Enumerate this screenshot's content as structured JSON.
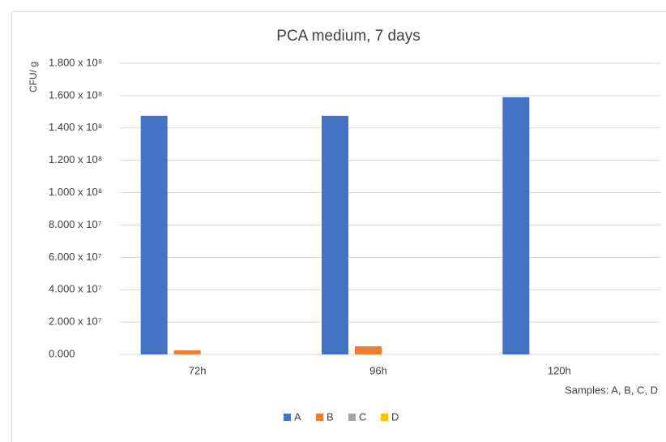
{
  "chart_data": {
    "type": "bar",
    "title": "PCA medium, 7 days",
    "y_label": "CFU/ g",
    "annotation": "Samples: A, B, C, D",
    "categories": [
      "72h",
      "96h",
      "120h"
    ],
    "series": [
      {
        "name": "A",
        "color": "#4472c4",
        "values": [
          147500000,
          147500000,
          159000000
        ]
      },
      {
        "name": "B",
        "color": "#ed7d31",
        "values": [
          2500000,
          5000000,
          0
        ]
      },
      {
        "name": "C",
        "color": "#a5a5a5",
        "values": [
          0,
          0,
          0
        ]
      },
      {
        "name": "D",
        "color": "#ffc000",
        "values": [
          0,
          0,
          0
        ]
      }
    ],
    "ylim": [
      0,
      180000000
    ],
    "yticks": [
      {
        "value": 0,
        "label": "0.000"
      },
      {
        "value": 20000000,
        "label": "2.000 x 10⁷"
      },
      {
        "value": 40000000,
        "label": "4.000 x 10⁷"
      },
      {
        "value": 60000000,
        "label": "6.000 x 10⁷"
      },
      {
        "value": 80000000,
        "label": "8.000 x 10⁷"
      },
      {
        "value": 100000000,
        "label": "1.000 x 10⁸"
      },
      {
        "value": 120000000,
        "label": "1.200 x 10⁸"
      },
      {
        "value": 140000000,
        "label": "1.400 x 10⁸"
      },
      {
        "value": 160000000,
        "label": "1.600 x 10⁸"
      },
      {
        "value": 180000000,
        "label": "1.800 x 10⁸"
      }
    ],
    "grid": true,
    "legend": "bottom"
  }
}
